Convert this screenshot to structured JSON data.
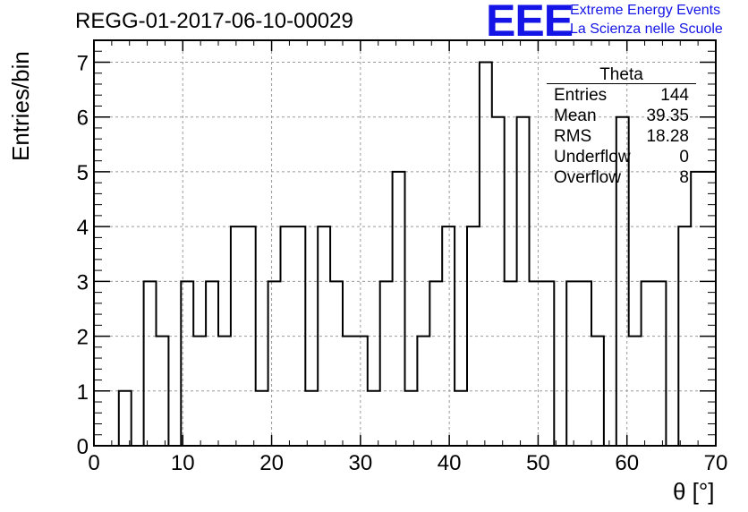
{
  "header": {
    "run_id": "REGG-01-2017-06-10-00029"
  },
  "logo": {
    "mark": "EEE",
    "line1": "Extreme Energy Events",
    "line2": "La Scienza nelle Scuole",
    "color": "#1414e6"
  },
  "stats_box": {
    "title": "Theta",
    "rows": [
      {
        "label": "Entries",
        "value": "144"
      },
      {
        "label": "Mean",
        "value": "39.35"
      },
      {
        "label": "RMS",
        "value": "18.28"
      },
      {
        "label": "Underflow",
        "value": "0"
      },
      {
        "label": "Overflow",
        "value": "8"
      }
    ]
  },
  "chart_data": {
    "type": "bar",
    "style": "step-histogram",
    "title": "REGG-01-2017-06-10-00029",
    "xlabel": "θ [°]",
    "ylabel": "Entries/bin",
    "xlim": [
      0,
      70
    ],
    "ylim": [
      0,
      7.4
    ],
    "bin_width": 1.4,
    "bin_edges_start": 0,
    "xticks": [
      0,
      10,
      20,
      30,
      40,
      50,
      60,
      70
    ],
    "yticks": [
      0,
      1,
      2,
      3,
      4,
      5,
      6,
      7
    ],
    "grid": true,
    "values": [
      0,
      0,
      1,
      0,
      3,
      2,
      0,
      3,
      2,
      3,
      2,
      4,
      4,
      1,
      3,
      4,
      4,
      1,
      4,
      3,
      2,
      2,
      1,
      3,
      5,
      1,
      2,
      3,
      4,
      1,
      4,
      7,
      6,
      3,
      6,
      3,
      3,
      0,
      3,
      3,
      2,
      0,
      6,
      2,
      3,
      3,
      0,
      4,
      5,
      5
    ]
  }
}
